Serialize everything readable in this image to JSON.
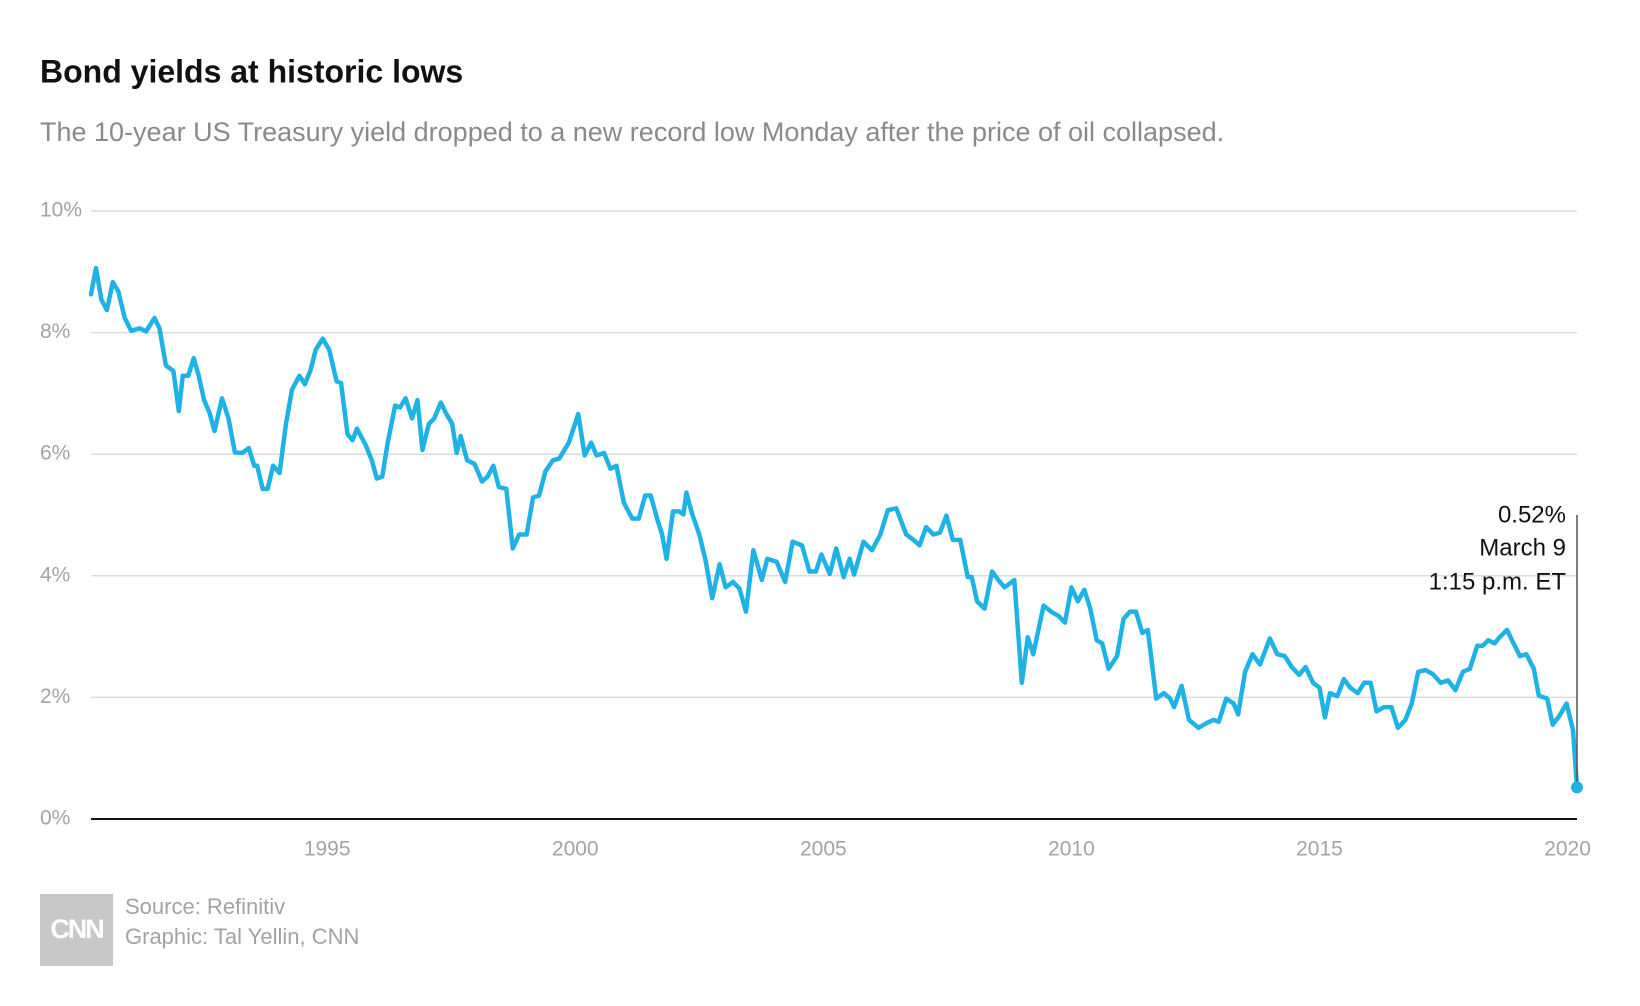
{
  "chart_data": {
    "type": "line",
    "title": "Bond yields at historic lows",
    "subtitle": "The 10-year US Treasury yield dropped to a new record low Monday after the price of oil collapsed.",
    "color": "#1fb2e6",
    "grid": true,
    "xlim": [
      1990.24,
      2020.19
    ],
    "xticks": [
      1995,
      2000,
      2005,
      2010,
      2015,
      2020
    ],
    "ylim": [
      0,
      10
    ],
    "yticks": [
      {
        "value": 0,
        "label": "0%"
      },
      {
        "value": 2,
        "label": "2%"
      },
      {
        "value": 4,
        "label": "4%"
      },
      {
        "value": 6,
        "label": "6%"
      },
      {
        "value": 8,
        "label": "8%"
      },
      {
        "value": 10,
        "label": "10%"
      }
    ],
    "annotation": {
      "label": "0.52%",
      "date": "March 9",
      "time": "1:15 p.m. ET"
    },
    "source": "Source: Refinitiv",
    "credit": "Graphic: Tal Yellin, CNN",
    "logo": "CNN",
    "x": [
      1990.24,
      1990.34,
      1990.45,
      1990.56,
      1990.68,
      1990.79,
      1990.92,
      1991.05,
      1991.22,
      1991.35,
      1991.52,
      1991.62,
      1991.75,
      1991.9,
      1992.01,
      1992.09,
      1992.2,
      1992.31,
      1992.41,
      1992.52,
      1992.63,
      1992.73,
      1992.88,
      1993.01,
      1993.14,
      1993.29,
      1993.42,
      1993.53,
      1993.59,
      1993.7,
      1993.8,
      1993.91,
      1994.04,
      1994.17,
      1994.29,
      1994.44,
      1994.55,
      1994.66,
      1994.77,
      1994.91,
      1995.04,
      1995.19,
      1995.28,
      1995.41,
      1995.51,
      1995.6,
      1995.77,
      1995.9,
      1996.0,
      1996.11,
      1996.22,
      1996.37,
      1996.47,
      1996.58,
      1996.71,
      1996.82,
      1996.92,
      1997.05,
      1997.16,
      1997.29,
      1997.39,
      1997.52,
      1997.61,
      1997.69,
      1997.82,
      1997.97,
      1998.12,
      1998.23,
      1998.35,
      1998.46,
      1998.61,
      1998.74,
      1998.87,
      1999.02,
      1999.15,
      1999.27,
      1999.4,
      1999.55,
      1999.68,
      1999.87,
      2000.06,
      2000.19,
      2000.32,
      2000.43,
      2000.58,
      2000.71,
      2000.83,
      2000.98,
      2001.15,
      2001.28,
      2001.41,
      2001.52,
      2001.65,
      2001.75,
      2001.84,
      2001.97,
      2002.09,
      2002.18,
      2002.24,
      2002.35,
      2002.5,
      2002.63,
      2002.76,
      2002.91,
      2003.03,
      2003.18,
      2003.31,
      2003.44,
      2003.59,
      2003.76,
      2003.87,
      2004.06,
      2004.23,
      2004.38,
      2004.57,
      2004.72,
      2004.85,
      2004.96,
      2005.13,
      2005.26,
      2005.41,
      2005.53,
      2005.62,
      2005.81,
      2005.98,
      2006.15,
      2006.3,
      2006.47,
      2006.67,
      2006.82,
      2006.94,
      2007.07,
      2007.22,
      2007.35,
      2007.48,
      2007.61,
      2007.76,
      2007.91,
      2007.99,
      2008.1,
      2008.25,
      2008.4,
      2008.53,
      2008.65,
      2008.85,
      2009.0,
      2009.12,
      2009.23,
      2009.44,
      2009.59,
      2009.74,
      2009.87,
      2010.0,
      2010.13,
      2010.26,
      2010.38,
      2010.51,
      2010.62,
      2010.75,
      2010.92,
      2011.05,
      2011.18,
      2011.3,
      2011.43,
      2011.54,
      2011.71,
      2011.86,
      2011.99,
      2012.07,
      2012.22,
      2012.37,
      2012.56,
      2012.71,
      2012.86,
      2012.97,
      2013.12,
      2013.27,
      2013.36,
      2013.5,
      2013.65,
      2013.8,
      2014.0,
      2014.15,
      2014.3,
      2014.44,
      2014.59,
      2014.72,
      2014.87,
      2015.0,
      2015.11,
      2015.21,
      2015.36,
      2015.49,
      2015.62,
      2015.77,
      2015.9,
      2016.03,
      2016.15,
      2016.3,
      2016.45,
      2016.58,
      2016.73,
      2016.86,
      2016.99,
      2017.14,
      2017.29,
      2017.44,
      2017.59,
      2017.74,
      2017.89,
      2018.03,
      2018.18,
      2018.29,
      2018.4,
      2018.53,
      2018.63,
      2018.78,
      2018.91,
      2019.04,
      2019.17,
      2019.32,
      2019.42,
      2019.59,
      2019.7,
      2019.83,
      2019.98,
      2020.11,
      2020.19
    ],
    "values": [
      8.63,
      9.06,
      8.54,
      8.37,
      8.83,
      8.68,
      8.24,
      8.03,
      8.07,
      8.02,
      8.24,
      8.07,
      7.46,
      7.37,
      6.71,
      7.29,
      7.29,
      7.58,
      7.29,
      6.89,
      6.68,
      6.38,
      6.92,
      6.59,
      6.03,
      6.02,
      6.1,
      5.81,
      5.81,
      5.43,
      5.43,
      5.81,
      5.69,
      6.5,
      7.06,
      7.29,
      7.15,
      7.37,
      7.72,
      7.9,
      7.72,
      7.2,
      7.17,
      6.33,
      6.23,
      6.42,
      6.16,
      5.9,
      5.6,
      5.63,
      6.19,
      6.8,
      6.77,
      6.92,
      6.59,
      6.89,
      6.07,
      6.5,
      6.59,
      6.85,
      6.68,
      6.5,
      6.02,
      6.3,
      5.9,
      5.84,
      5.55,
      5.63,
      5.81,
      5.46,
      5.43,
      4.45,
      4.68,
      4.68,
      5.29,
      5.32,
      5.72,
      5.9,
      5.93,
      6.19,
      6.66,
      5.98,
      6.19,
      5.98,
      6.02,
      5.76,
      5.81,
      5.2,
      4.94,
      4.94,
      5.32,
      5.32,
      4.94,
      4.68,
      4.28,
      5.06,
      5.06,
      5.01,
      5.37,
      5.03,
      4.68,
      4.24,
      3.63,
      4.19,
      3.81,
      3.9,
      3.79,
      3.41,
      4.42,
      3.93,
      4.28,
      4.23,
      3.9,
      4.56,
      4.5,
      4.07,
      4.07,
      4.35,
      4.03,
      4.45,
      3.98,
      4.28,
      4.02,
      4.56,
      4.42,
      4.68,
      5.08,
      5.11,
      4.68,
      4.59,
      4.5,
      4.8,
      4.68,
      4.71,
      4.99,
      4.59,
      4.59,
      3.98,
      3.98,
      3.58,
      3.46,
      4.07,
      3.93,
      3.81,
      3.93,
      2.24,
      2.99,
      2.71,
      3.51,
      3.41,
      3.34,
      3.23,
      3.81,
      3.58,
      3.77,
      3.46,
      2.94,
      2.89,
      2.47,
      2.68,
      3.29,
      3.41,
      3.41,
      3.06,
      3.11,
      1.98,
      2.07,
      1.98,
      1.84,
      2.19,
      1.63,
      1.5,
      1.57,
      1.63,
      1.6,
      1.98,
      1.9,
      1.72,
      2.42,
      2.71,
      2.54,
      2.97,
      2.71,
      2.68,
      2.5,
      2.37,
      2.5,
      2.24,
      2.16,
      1.67,
      2.07,
      2.02,
      2.3,
      2.16,
      2.07,
      2.24,
      2.24,
      1.77,
      1.84,
      1.84,
      1.5,
      1.63,
      1.9,
      2.42,
      2.45,
      2.38,
      2.24,
      2.28,
      2.12,
      2.42,
      2.47,
      2.85,
      2.85,
      2.94,
      2.89,
      2.99,
      3.11,
      2.89,
      2.68,
      2.71,
      2.47,
      2.03,
      1.98,
      1.55,
      1.69,
      1.9,
      1.46,
      0.52
    ]
  }
}
